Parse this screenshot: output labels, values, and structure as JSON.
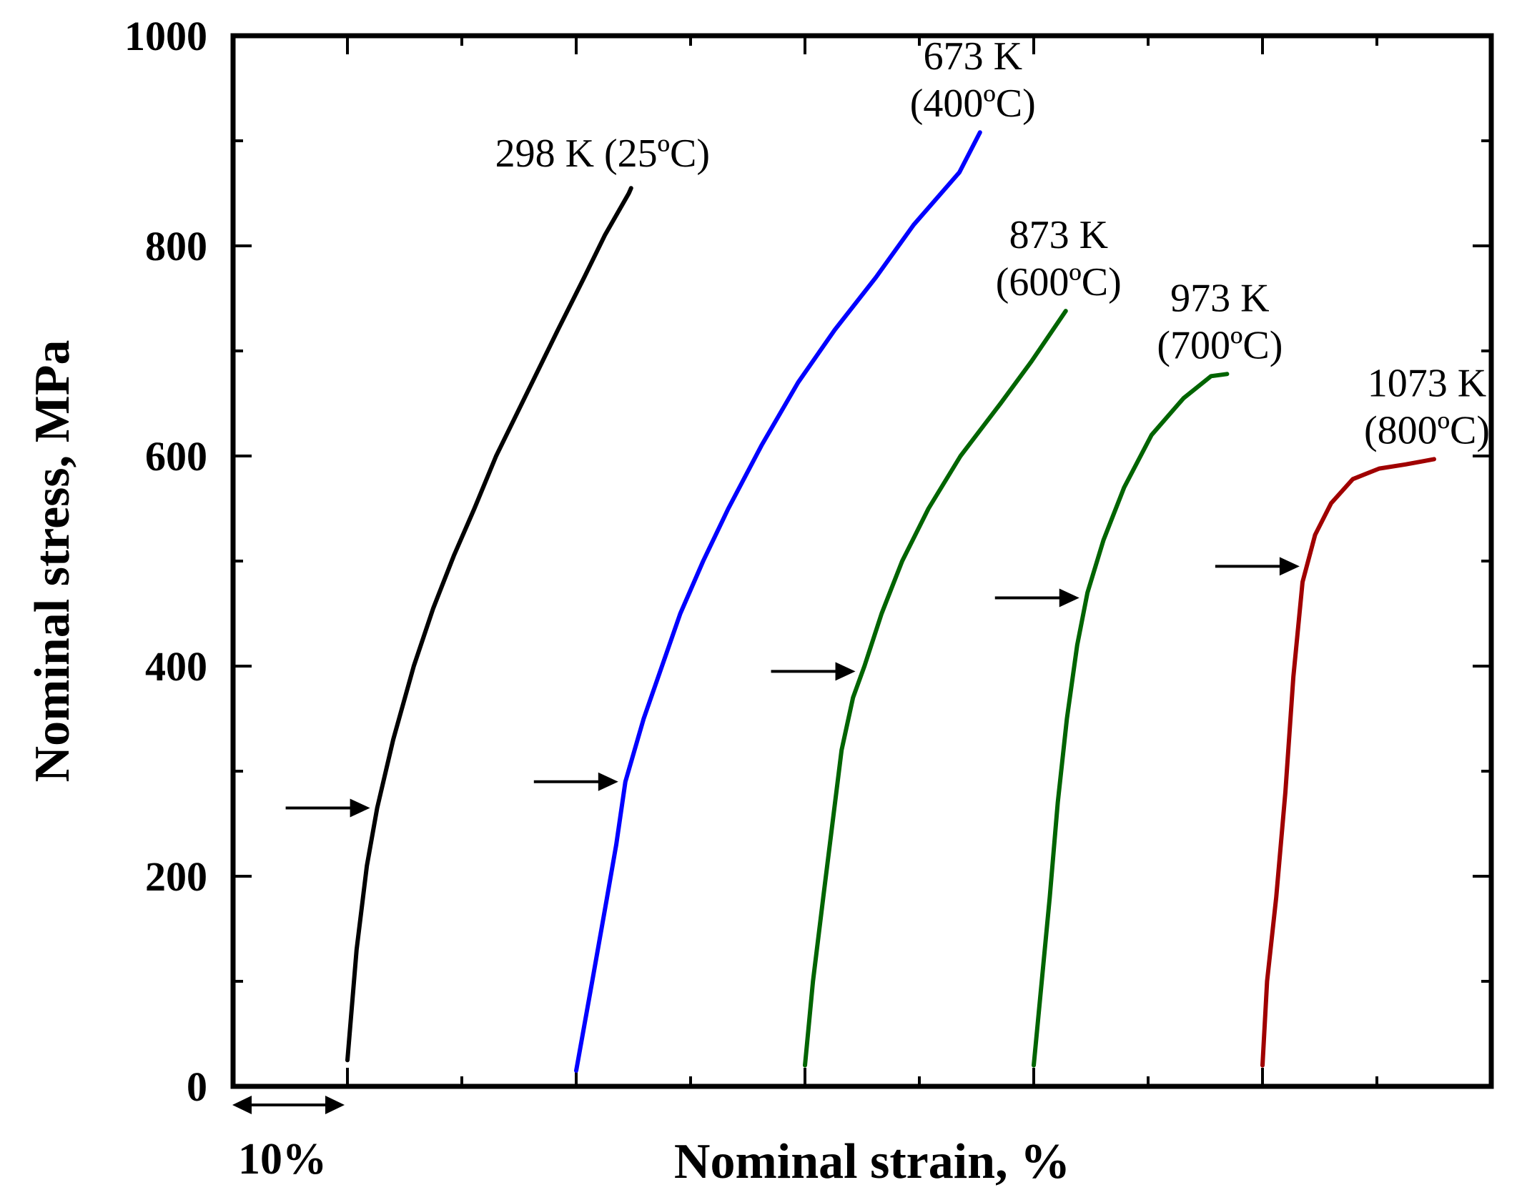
{
  "chart_data": {
    "type": "line",
    "title": "",
    "xlabel": "Nominal strain, %",
    "ylabel": "Nominal stress, MPa",
    "ylim": [
      0,
      1000
    ],
    "yticks": [
      0,
      200,
      400,
      600,
      800,
      1000
    ],
    "xlim": [
      -10,
      100
    ],
    "scale_bar": {
      "label": "10%",
      "from": -10,
      "to": 0
    },
    "grid": false,
    "legend": "none",
    "series": [
      {
        "name": "298 K",
        "label_lines": [
          "298 K (25ºC)"
        ],
        "color": "#000000",
        "points": [
          [
            0,
            25
          ],
          [
            0.8,
            130
          ],
          [
            1.7,
            210
          ],
          [
            2.6,
            265
          ],
          [
            4,
            330
          ],
          [
            5.8,
            400
          ],
          [
            7.5,
            455
          ],
          [
            9.3,
            505
          ],
          [
            11.1,
            550
          ],
          [
            13,
            600
          ],
          [
            15.7,
            660
          ],
          [
            18.4,
            720
          ],
          [
            20.7,
            770
          ],
          [
            22.5,
            810
          ],
          [
            24.6,
            850
          ],
          [
            24.8,
            855
          ]
        ],
        "arrow_stress": 265
      },
      {
        "name": "673 K",
        "label_lines": [
          "673 K",
          "(400ºC)"
        ],
        "color": "#0000ff",
        "points": [
          [
            20,
            15
          ],
          [
            21.4,
            100
          ],
          [
            22.7,
            180
          ],
          [
            23.5,
            230
          ],
          [
            24.3,
            290
          ],
          [
            25.9,
            350
          ],
          [
            27.5,
            400
          ],
          [
            29.1,
            450
          ],
          [
            31.1,
            500
          ],
          [
            33.3,
            550
          ],
          [
            36.2,
            610
          ],
          [
            39.4,
            670
          ],
          [
            42.6,
            720
          ],
          [
            46.2,
            770
          ],
          [
            49.5,
            820
          ],
          [
            53.5,
            870
          ],
          [
            55.3,
            908
          ]
        ],
        "arrow_stress": 290
      },
      {
        "name": "873 K",
        "label_lines": [
          "873 K",
          "(600ºC)"
        ],
        "color": "#006400",
        "points": [
          [
            40,
            20
          ],
          [
            40.7,
            100
          ],
          [
            41.6,
            180
          ],
          [
            42.4,
            250
          ],
          [
            43.2,
            320
          ],
          [
            44.2,
            370
          ],
          [
            45.2,
            400
          ],
          [
            46.7,
            450
          ],
          [
            48.5,
            500
          ],
          [
            50.8,
            550
          ],
          [
            53.6,
            600
          ],
          [
            57.1,
            650
          ],
          [
            59.8,
            690
          ],
          [
            62.8,
            738
          ]
        ],
        "arrow_stress": 395
      },
      {
        "name": "973 K",
        "label_lines": [
          "973 K",
          "(700ºC)"
        ],
        "color": "#006400",
        "points": [
          [
            60,
            20
          ],
          [
            60.7,
            100
          ],
          [
            61.4,
            180
          ],
          [
            62.1,
            270
          ],
          [
            62.9,
            350
          ],
          [
            63.8,
            420
          ],
          [
            64.7,
            470
          ],
          [
            66.1,
            520
          ],
          [
            67.9,
            570
          ],
          [
            70.3,
            620
          ],
          [
            73.1,
            655
          ],
          [
            75.5,
            676
          ],
          [
            76.9,
            678
          ]
        ],
        "arrow_stress": 465
      },
      {
        "name": "1073 K",
        "label_lines": [
          "1073 K",
          "(800ºC)"
        ],
        "color": "#a00000",
        "points": [
          [
            80,
            20
          ],
          [
            80.4,
            100
          ],
          [
            81.2,
            180
          ],
          [
            82,
            280
          ],
          [
            82.7,
            390
          ],
          [
            83.5,
            480
          ],
          [
            84.6,
            525
          ],
          [
            86,
            555
          ],
          [
            87.9,
            578
          ],
          [
            90.2,
            588
          ],
          [
            92.5,
            592
          ],
          [
            94,
            595
          ],
          [
            95,
            597
          ]
        ],
        "arrow_stress": 495
      }
    ]
  }
}
